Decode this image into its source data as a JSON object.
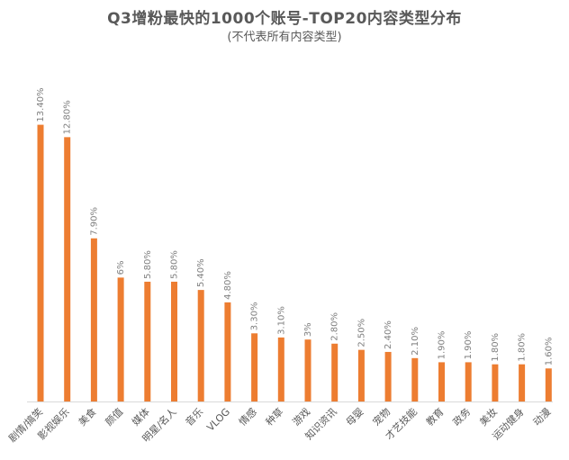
{
  "chart_data": {
    "type": "bar",
    "title": "Q3增粉最快的1000个账号-TOP20内容类型分布",
    "subtitle": "(不代表所有内容类型)",
    "categories": [
      "剧情/搞笑",
      "影视娱乐",
      "美食",
      "颜值",
      "媒体",
      "明星/名人",
      "音乐",
      "VLOG",
      "情感",
      "种草",
      "游戏",
      "知识资讯",
      "母婴",
      "宠物",
      "才艺技能",
      "教育",
      "政务",
      "美妆",
      "运动健身",
      "动漫"
    ],
    "values": [
      13.4,
      12.8,
      7.9,
      6,
      5.8,
      5.8,
      5.4,
      4.8,
      3.3,
      3.1,
      3,
      2.8,
      2.5,
      2.4,
      2.1,
      1.9,
      1.9,
      1.8,
      1.8,
      1.6
    ],
    "labels": [
      "13.40%",
      "12.80%",
      "7.90%",
      "6%",
      "5.80%",
      "5.80%",
      "5.40%",
      "4.80%",
      "3.30%",
      "3.10%",
      "3%",
      "2.80%",
      "2.50%",
      "2.40%",
      "2.10%",
      "1.90%",
      "1.90%",
      "1.80%",
      "1.80%",
      "1.60%"
    ],
    "xlabel": "",
    "ylabel": "",
    "ylim": [
      0,
      13.6
    ],
    "grid": false,
    "legend": "none",
    "bar_color": "#ed7d31",
    "axis_color": "#d9d9d9"
  }
}
